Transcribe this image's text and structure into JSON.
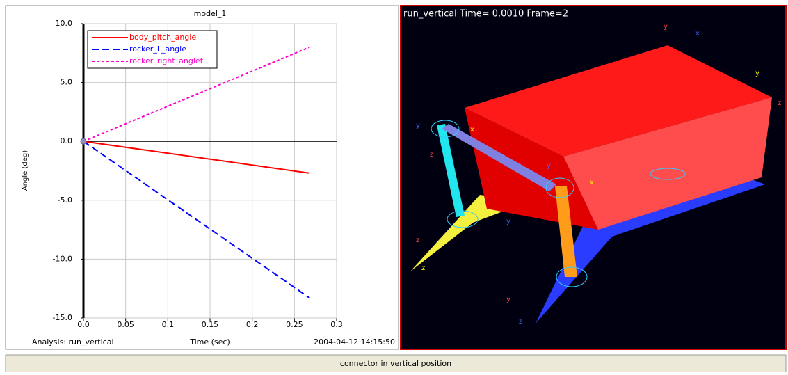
{
  "chart_data": {
    "type": "line",
    "title": "model_1",
    "x_label": "Time (sec)",
    "y_label": "Angle (deg)",
    "footer_left": "Analysis:  run_vertical",
    "footer_right": "2004-04-12 14:15:50",
    "xlim": [
      0,
      0.3
    ],
    "xticks": [
      {
        "value": 0,
        "label": "0.0"
      },
      0.05,
      0.1,
      0.15,
      0.2,
      0.25,
      0.3
    ],
    "ylim": [
      -15,
      10
    ],
    "yticks": [
      {
        "value": -15,
        "label": "-15.0"
      },
      {
        "value": -10,
        "label": "-10.0"
      },
      {
        "value": -5,
        "label": "-5.0"
      },
      {
        "value": 0,
        "label": "0.0"
      },
      {
        "value": 5,
        "label": "5.0"
      },
      {
        "value": 10,
        "label": "10.0"
      }
    ],
    "grid": true,
    "legend": "upper left",
    "series": [
      {
        "name": "body_pitch_angle",
        "color": "#ff0000",
        "dash": "solid",
        "x": [
          0,
          0.268
        ],
        "values": [
          0,
          -2.7
        ]
      },
      {
        "name": "rocker_L_angle",
        "color": "#0000ff",
        "dash": "dashed",
        "x": [
          0,
          0.268
        ],
        "values": [
          0,
          -13.3
        ]
      },
      {
        "name": "rocker_right_anglet",
        "color": "#ff00cc",
        "dash": "dotted",
        "x": [
          0,
          0.268
        ],
        "values": [
          0,
          8.0
        ]
      }
    ]
  },
  "viewport": {
    "caption": "run_vertical   Time=  0.0010  Frame=2",
    "triad_labels": [
      "y",
      "x",
      "y",
      "z",
      "y",
      "x",
      "z",
      "y",
      "x",
      "z",
      "y",
      "z",
      "y",
      "z"
    ]
  },
  "status_bar": {
    "text": "connector in vertical position"
  }
}
